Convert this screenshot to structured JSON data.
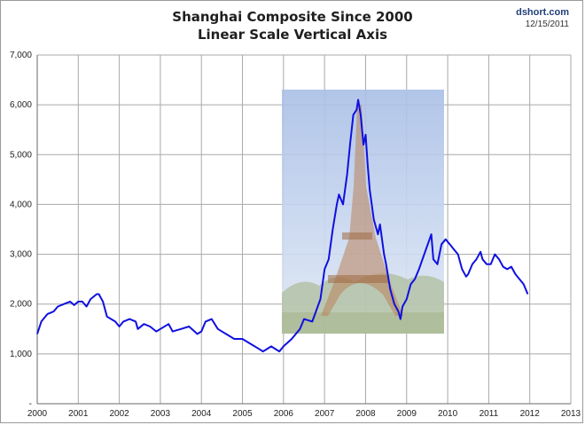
{
  "header": {
    "title_line1": "Shanghai Composite Since 2000",
    "title_line2": "Linear Scale Vertical Axis",
    "source": "dshort.com",
    "date": "12/15/2011"
  },
  "chart_data": {
    "type": "line",
    "title": "Shanghai Composite Since 2000",
    "subtitle": "Linear Scale Vertical Axis",
    "xlabel": "",
    "ylabel": "",
    "xlim": [
      2000,
      2013
    ],
    "ylim": [
      0,
      7000
    ],
    "x_ticks": [
      2000,
      2001,
      2002,
      2003,
      2004,
      2005,
      2006,
      2007,
      2008,
      2009,
      2010,
      2011,
      2012,
      2013
    ],
    "x_tick_labels": [
      "2000",
      "2001",
      "2002",
      "2003",
      "2004",
      "2005",
      "2006",
      "2007",
      "2008",
      "2009",
      "2010",
      "2011",
      "2012",
      "2013"
    ],
    "y_ticks": [
      0,
      1000,
      2000,
      3000,
      4000,
      5000,
      6000,
      7000
    ],
    "y_tick_labels": [
      "-",
      "1,000",
      "2,000",
      "3,000",
      "4,000",
      "5,000",
      "6,000",
      "7,000"
    ],
    "grid": true,
    "series": [
      {
        "color": "#1010e0",
        "x": [
          2000.0,
          2000.1,
          2000.25,
          2000.4,
          2000.5,
          2000.65,
          2000.8,
          2000.9,
          2001.0,
          2001.1,
          2001.2,
          2001.3,
          2001.45,
          2001.5,
          2001.6,
          2001.7,
          2001.8,
          2001.9,
          2002.0,
          2002.1,
          2002.25,
          2002.4,
          2002.45,
          2002.6,
          2002.75,
          2002.9,
          2003.0,
          2003.2,
          2003.3,
          2003.5,
          2003.7,
          2003.9,
          2004.0,
          2004.1,
          2004.25,
          2004.4,
          2004.6,
          2004.8,
          2005.0,
          2005.2,
          2005.4,
          2005.5,
          2005.7,
          2005.9,
          2006.0,
          2006.2,
          2006.4,
          2006.5,
          2006.7,
          2006.9,
          2007.0,
          2007.1,
          2007.2,
          2007.3,
          2007.35,
          2007.45,
          2007.55,
          2007.62,
          2007.7,
          2007.78,
          2007.82,
          2007.88,
          2007.95,
          2008.0,
          2008.05,
          2008.1,
          2008.2,
          2008.3,
          2008.35,
          2008.45,
          2008.5,
          2008.6,
          2008.7,
          2008.8,
          2008.85,
          2008.9,
          2009.0,
          2009.1,
          2009.2,
          2009.3,
          2009.45,
          2009.6,
          2009.65,
          2009.75,
          2009.85,
          2009.95,
          2010.05,
          2010.15,
          2010.25,
          2010.35,
          2010.45,
          2010.5,
          2010.6,
          2010.7,
          2010.8,
          2010.85,
          2010.95,
          2011.05,
          2011.15,
          2011.25,
          2011.35,
          2011.45,
          2011.55,
          2011.65,
          2011.75,
          2011.85,
          2011.95
        ],
        "y": [
          1400,
          1650,
          1800,
          1850,
          1950,
          2000,
          2050,
          1980,
          2050,
          2050,
          1950,
          2100,
          2200,
          2200,
          2050,
          1750,
          1700,
          1650,
          1550,
          1650,
          1700,
          1650,
          1500,
          1600,
          1550,
          1450,
          1500,
          1600,
          1450,
          1500,
          1550,
          1400,
          1450,
          1650,
          1700,
          1500,
          1400,
          1300,
          1300,
          1200,
          1100,
          1050,
          1150,
          1050,
          1150,
          1300,
          1500,
          1700,
          1650,
          2100,
          2700,
          2900,
          3500,
          4000,
          4200,
          4000,
          4600,
          5200,
          5800,
          5900,
          6100,
          5800,
          5200,
          5400,
          4800,
          4300,
          3700,
          3400,
          3600,
          3000,
          2800,
          2300,
          2000,
          1850,
          1700,
          1950,
          2100,
          2400,
          2500,
          2700,
          3050,
          3400,
          2900,
          2800,
          3200,
          3300,
          3200,
          3100,
          3000,
          2700,
          2550,
          2600,
          2800,
          2900,
          3050,
          2900,
          2800,
          2800,
          3000,
          2900,
          2750,
          2700,
          2750,
          2600,
          2500,
          2400,
          2200
        ]
      }
    ],
    "image_overlay": "eiffel-tower-photo"
  }
}
